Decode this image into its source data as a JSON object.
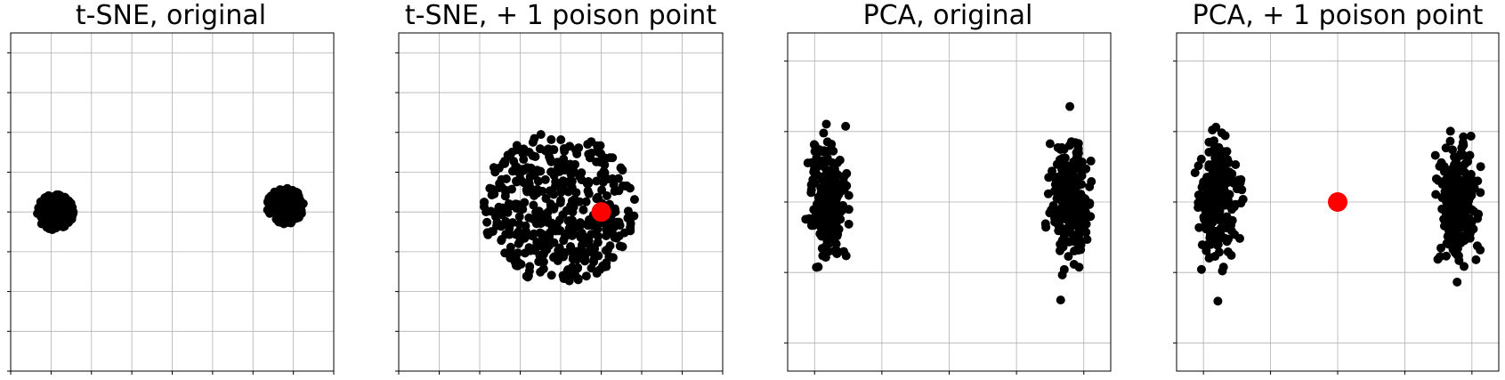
{
  "colors": {
    "points": "#000000",
    "poison": "#ff0000",
    "grid": "#b0b0b0",
    "frame": "#000000"
  },
  "chart_data": [
    {
      "type": "scatter",
      "title": "t-SNE, original",
      "xlabel": "",
      "ylabel": "",
      "xlim": [
        0,
        8
      ],
      "ylim": [
        0,
        8.5
      ],
      "x_ticks": [
        0,
        1,
        2,
        3,
        4,
        5,
        6,
        7,
        8
      ],
      "y_ticks": [
        0,
        1,
        2,
        3,
        4,
        5,
        6,
        7,
        8
      ],
      "grid": true,
      "clusters": [
        {
          "center": [
            1.1,
            4.0
          ],
          "count": 210,
          "spread": [
            0.9,
            0.9
          ],
          "shape": "disc"
        },
        {
          "center": [
            6.8,
            4.15
          ],
          "count": 230,
          "spread": [
            0.9,
            0.9
          ],
          "shape": "disc"
        }
      ],
      "poison": null
    },
    {
      "type": "scatter",
      "title": "t-SNE, + 1 poison point",
      "xlabel": "",
      "ylabel": "",
      "xlim": [
        0,
        8
      ],
      "ylim": [
        0,
        8.5
      ],
      "x_ticks": [
        0,
        1,
        2,
        3,
        4,
        5,
        6,
        7,
        8
      ],
      "y_ticks": [
        0,
        1,
        2,
        3,
        4,
        5,
        6,
        7,
        8
      ],
      "grid": true,
      "clusters": [
        {
          "center": [
            3.95,
            4.1
          ],
          "count": 420,
          "spread": [
            3.8,
            3.8
          ],
          "shape": "disc"
        }
      ],
      "poison": [
        5.0,
        4.0
      ]
    },
    {
      "type": "scatter",
      "title": "PCA, original",
      "xlabel": "",
      "ylabel": "",
      "xlim": [
        -1.2,
        1.2
      ],
      "ylim": [
        -1.2,
        1.2
      ],
      "x_ticks": [
        -1,
        -0.5,
        0,
        0.5,
        1
      ],
      "y_ticks": [
        -1,
        -0.5,
        0,
        0.5,
        1
      ],
      "grid": true,
      "clusters": [
        {
          "center": [
            -0.9,
            0.0
          ],
          "count": 230,
          "spread": [
            0.14,
            0.42
          ],
          "shape": "gauss"
        },
        {
          "center": [
            0.9,
            0.0
          ],
          "count": 230,
          "spread": [
            0.14,
            0.42
          ],
          "shape": "gauss"
        }
      ],
      "poison": null
    },
    {
      "type": "scatter",
      "title": "PCA, + 1 poison point",
      "xlabel": "",
      "ylabel": "",
      "xlim": [
        -1.2,
        1.2
      ],
      "ylim": [
        -1.2,
        1.2
      ],
      "x_ticks": [
        -1,
        -0.5,
        0,
        0.5,
        1
      ],
      "y_ticks": [
        -1,
        -0.5,
        0,
        0.5,
        1
      ],
      "grid": true,
      "clusters": [
        {
          "center": [
            -0.9,
            0.0
          ],
          "count": 230,
          "spread": [
            0.14,
            0.42
          ],
          "shape": "gauss"
        },
        {
          "center": [
            0.9,
            0.0
          ],
          "count": 230,
          "spread": [
            0.14,
            0.42
          ],
          "shape": "gauss"
        }
      ],
      "poison": [
        0.0,
        0.0
      ]
    }
  ]
}
